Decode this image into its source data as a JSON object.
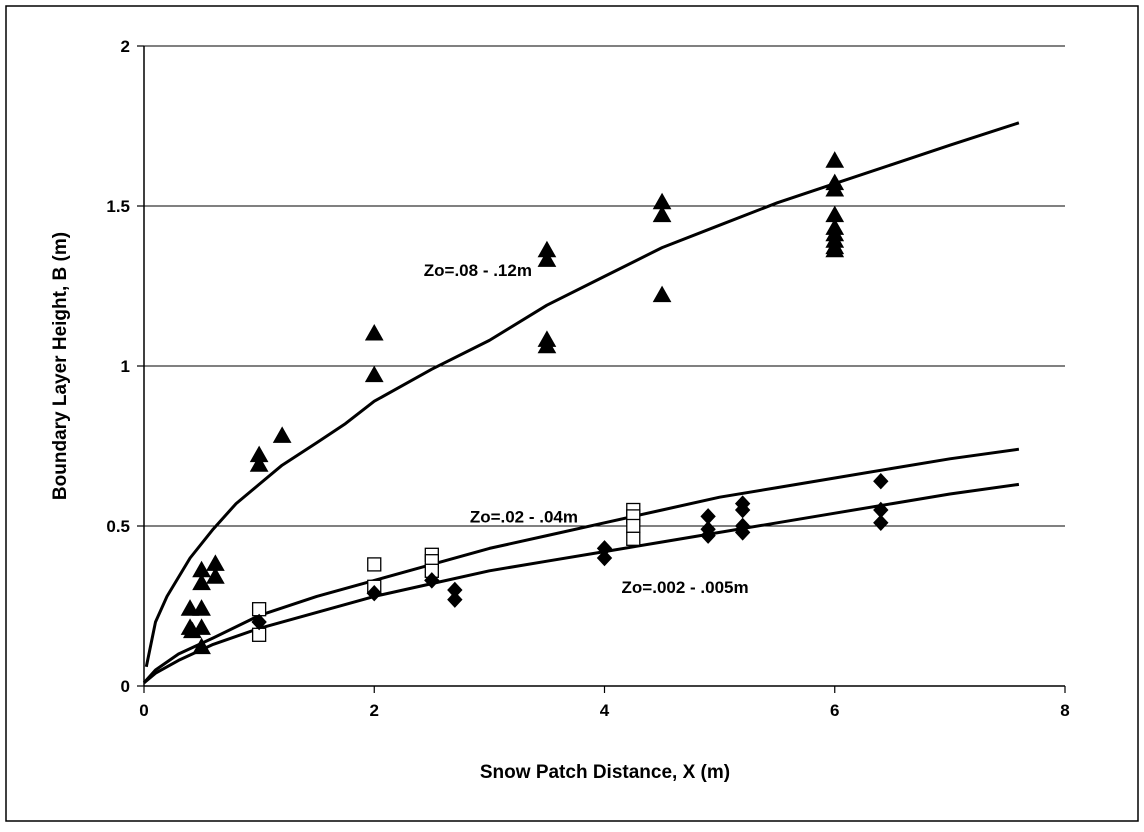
{
  "chart_data": {
    "type": "scatter",
    "title": "",
    "xlabel": "Snow Patch Distance, X  (m)",
    "ylabel": "Boundary Layer Height, B (m)",
    "xlim": [
      0,
      8
    ],
    "ylim": [
      0,
      2
    ],
    "x_ticks": [
      "0",
      "2",
      "4",
      "6",
      "8"
    ],
    "y_ticks": [
      "0",
      "0.5",
      "1",
      "1.5",
      "2"
    ],
    "y_gridlines": true,
    "legend": "none",
    "colors": {
      "markers": "#000000",
      "curves": "#000000",
      "grid": "#000000",
      "background": "#ffffff"
    },
    "series": [
      {
        "marker": "triangle-filled",
        "points": [
          [
            0.4,
            0.24
          ],
          [
            0.4,
            0.18
          ],
          [
            0.42,
            0.17
          ],
          [
            0.5,
            0.36
          ],
          [
            0.5,
            0.32
          ],
          [
            0.5,
            0.24
          ],
          [
            0.5,
            0.18
          ],
          [
            0.5,
            0.12
          ],
          [
            0.62,
            0.38
          ],
          [
            0.62,
            0.34
          ],
          [
            1.0,
            0.72
          ],
          [
            1.0,
            0.69
          ],
          [
            1.2,
            0.78
          ],
          [
            2.0,
            1.1
          ],
          [
            2.0,
            0.97
          ],
          [
            3.5,
            1.36
          ],
          [
            3.5,
            1.33
          ],
          [
            3.5,
            1.08
          ],
          [
            3.5,
            1.06
          ],
          [
            4.5,
            1.51
          ],
          [
            4.5,
            1.47
          ],
          [
            4.5,
            1.22
          ],
          [
            6.0,
            1.64
          ],
          [
            6.0,
            1.57
          ],
          [
            6.0,
            1.55
          ],
          [
            6.0,
            1.47
          ],
          [
            6.0,
            1.43
          ],
          [
            6.0,
            1.41
          ],
          [
            6.0,
            1.39
          ],
          [
            6.0,
            1.37
          ],
          [
            6.0,
            1.36
          ]
        ]
      },
      {
        "marker": "square-open",
        "points": [
          [
            1.0,
            0.24
          ],
          [
            1.0,
            0.16
          ],
          [
            2.0,
            0.38
          ],
          [
            2.0,
            0.31
          ],
          [
            2.5,
            0.41
          ],
          [
            2.5,
            0.39
          ],
          [
            2.5,
            0.36
          ],
          [
            4.25,
            0.55
          ],
          [
            4.25,
            0.53
          ],
          [
            4.25,
            0.5
          ],
          [
            4.25,
            0.46
          ]
        ]
      },
      {
        "marker": "diamond-filled",
        "points": [
          [
            1.0,
            0.2
          ],
          [
            2.0,
            0.29
          ],
          [
            2.5,
            0.33
          ],
          [
            2.7,
            0.3
          ],
          [
            2.7,
            0.27
          ],
          [
            4.0,
            0.43
          ],
          [
            4.0,
            0.4
          ],
          [
            4.9,
            0.53
          ],
          [
            4.9,
            0.49
          ],
          [
            4.9,
            0.47
          ],
          [
            5.2,
            0.57
          ],
          [
            5.2,
            0.55
          ],
          [
            5.2,
            0.5
          ],
          [
            5.2,
            0.48
          ],
          [
            6.4,
            0.64
          ],
          [
            6.4,
            0.55
          ],
          [
            6.4,
            0.51
          ]
        ]
      }
    ],
    "curves": [
      {
        "label": "Zo=.08 - .12m",
        "points": [
          [
            0.02,
            0.06
          ],
          [
            0.1,
            0.2
          ],
          [
            0.2,
            0.28
          ],
          [
            0.4,
            0.4
          ],
          [
            0.6,
            0.49
          ],
          [
            0.8,
            0.57
          ],
          [
            1.0,
            0.63
          ],
          [
            1.2,
            0.69
          ],
          [
            1.5,
            0.76
          ],
          [
            1.75,
            0.82
          ],
          [
            2.0,
            0.89
          ],
          [
            2.5,
            0.99
          ],
          [
            3.0,
            1.08
          ],
          [
            3.5,
            1.19
          ],
          [
            4.0,
            1.28
          ],
          [
            4.5,
            1.37
          ],
          [
            5.0,
            1.44
          ],
          [
            5.5,
            1.51
          ],
          [
            6.0,
            1.57
          ],
          [
            6.5,
            1.63
          ],
          [
            7.0,
            1.69
          ],
          [
            7.6,
            1.76
          ]
        ]
      },
      {
        "label": "Zo=.02 - .04m",
        "points": [
          [
            0.0,
            0.01
          ],
          [
            0.1,
            0.05
          ],
          [
            0.3,
            0.1
          ],
          [
            0.6,
            0.15
          ],
          [
            1.0,
            0.22
          ],
          [
            1.5,
            0.28
          ],
          [
            2.0,
            0.33
          ],
          [
            2.5,
            0.38
          ],
          [
            3.0,
            0.43
          ],
          [
            3.5,
            0.47
          ],
          [
            4.0,
            0.51
          ],
          [
            4.5,
            0.55
          ],
          [
            5.0,
            0.59
          ],
          [
            5.5,
            0.62
          ],
          [
            6.0,
            0.65
          ],
          [
            6.5,
            0.68
          ],
          [
            7.0,
            0.71
          ],
          [
            7.6,
            0.74
          ]
        ]
      },
      {
        "label": "Zo=.002 - .005m",
        "points": [
          [
            0.0,
            0.01
          ],
          [
            0.1,
            0.04
          ],
          [
            0.3,
            0.08
          ],
          [
            0.6,
            0.13
          ],
          [
            1.0,
            0.18
          ],
          [
            1.5,
            0.23
          ],
          [
            2.0,
            0.28
          ],
          [
            2.5,
            0.32
          ],
          [
            3.0,
            0.36
          ],
          [
            3.5,
            0.39
          ],
          [
            4.0,
            0.42
          ],
          [
            4.5,
            0.45
          ],
          [
            5.0,
            0.48
          ],
          [
            5.5,
            0.51
          ],
          [
            6.0,
            0.54
          ],
          [
            6.5,
            0.57
          ],
          [
            7.0,
            0.6
          ],
          [
            7.6,
            0.63
          ]
        ]
      }
    ],
    "annotations": [
      {
        "text": "Zo=.08 - .12m",
        "x": 2.9,
        "y": 1.3
      },
      {
        "text": "Zo=.02 - .04m",
        "x": 3.3,
        "y": 0.53
      },
      {
        "text": "Zo=.002 - .005m",
        "x": 4.7,
        "y": 0.31
      }
    ]
  }
}
